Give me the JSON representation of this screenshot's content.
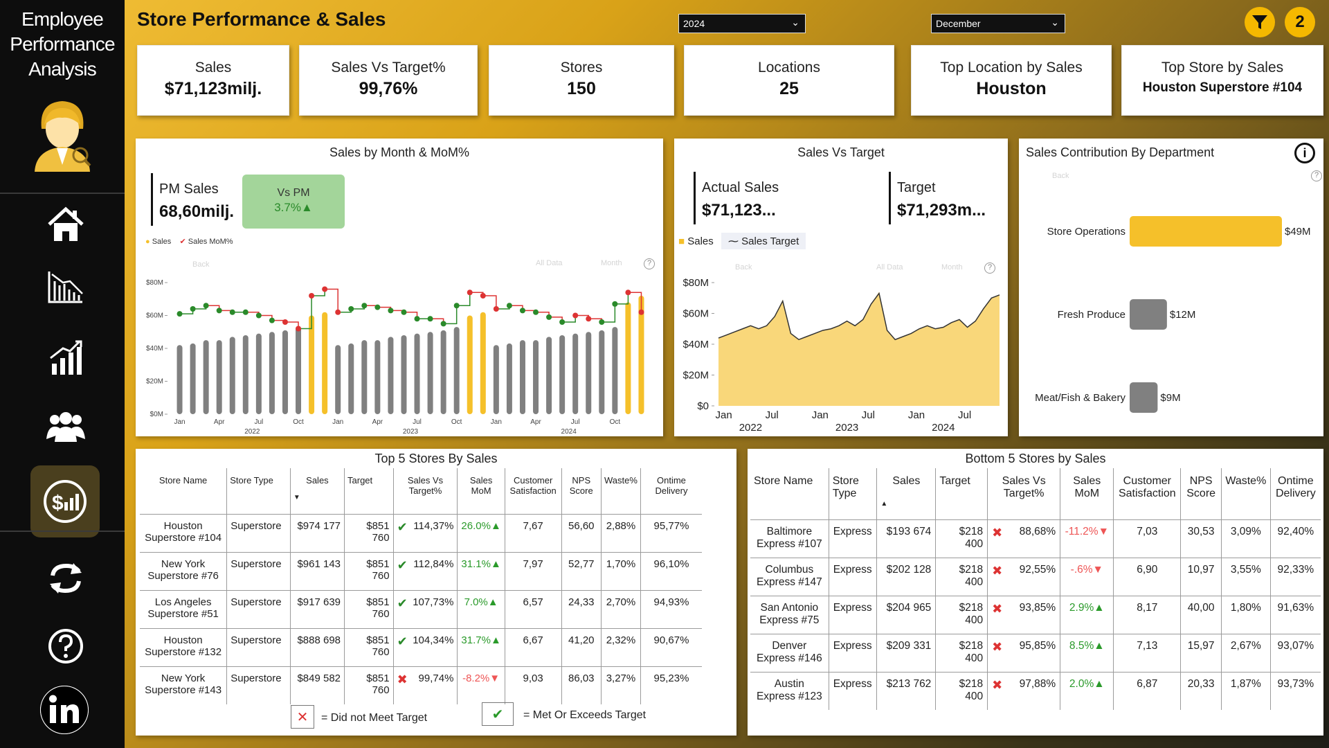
{
  "app": {
    "title_line1": "Employee",
    "title_line2": "Performance",
    "title_line3": "Analysis"
  },
  "header": {
    "title": "Store Performance & Sales",
    "year_slicer": "2024",
    "month_slicer": "December",
    "filter_count": "2"
  },
  "kpis": [
    {
      "label": "Sales",
      "value": "$71,123milj."
    },
    {
      "label": "Sales Vs Target%",
      "value": "99,76%"
    },
    {
      "label": "Stores",
      "value": "150"
    },
    {
      "label": "Locations",
      "value": "25"
    },
    {
      "label": "Top Location by Sales",
      "value": "Houston"
    },
    {
      "label": "Top Store by Sales",
      "value": "Houston Superstore #104"
    }
  ],
  "monthly": {
    "title": "Sales by Month & MoM%",
    "pm_label": "PM Sales",
    "pm_value": "68,60milj.",
    "vs_label": "Vs PM",
    "vs_value": "3.7%▲",
    "legend_sales": "Sales",
    "legend_mom": "Sales MoM%",
    "ghost_back": "Back",
    "ghost_alldata": "All Data",
    "ghost_month": "Month"
  },
  "target_card": {
    "title": "Sales Vs Target",
    "actual_label": "Actual Sales",
    "actual_value": "$71,123...",
    "target_label": "Target",
    "target_value": "$71,293m...",
    "legend_sales": "Sales",
    "legend_target": "Sales Target",
    "ghost_back": "Back",
    "ghost_alldata": "All Data",
    "ghost_month": "Month"
  },
  "department": {
    "title": "Sales Contribution By Department",
    "ghost_back": "Back",
    "bars": [
      {
        "label": "Store Operations",
        "value": 49,
        "value_label": "$49M",
        "color": "#f5c02a"
      },
      {
        "label": "Fresh Produce",
        "value": 12,
        "value_label": "$12M",
        "color": "#808080"
      },
      {
        "label": "Meat/Fish & Bakery",
        "value": 9,
        "value_label": "$9M",
        "color": "#808080"
      }
    ]
  },
  "chart_data": [
    {
      "type": "bar",
      "title": "Sales by Month & MoM%",
      "categories": [
        "Jan",
        "Feb",
        "Mar",
        "Apr",
        "May",
        "Jun",
        "Jul",
        "Aug",
        "Sep",
        "Oct",
        "Nov",
        "Dec",
        "Jan",
        "Feb",
        "Mar",
        "Apr",
        "May",
        "Jun",
        "Jul",
        "Aug",
        "Sep",
        "Oct",
        "Nov",
        "Dec",
        "Jan",
        "Feb",
        "Mar",
        "Apr",
        "May",
        "Jun",
        "Jul",
        "Aug",
        "Sep",
        "Oct",
        "Nov",
        "Dec"
      ],
      "x_tick_labels": [
        "Jan",
        "Apr",
        "Jul",
        "Oct",
        "Jan",
        "Apr",
        "Jul",
        "Oct",
        "Jan",
        "Apr",
        "Jul",
        "Oct"
      ],
      "year_labels": [
        "2022",
        "2023",
        "2024"
      ],
      "y_tick_labels": [
        "$0M",
        "$20M",
        "$40M",
        "$60M",
        "$80M"
      ],
      "ylim": [
        0,
        80
      ],
      "series": [
        {
          "name": "Sales",
          "values": [
            42,
            43,
            45,
            45,
            47,
            48,
            49,
            50,
            51,
            53,
            60,
            62,
            42,
            43,
            45,
            45,
            47,
            48,
            49,
            50,
            51,
            53,
            60,
            62,
            42,
            43,
            45,
            45,
            47,
            48,
            49,
            50,
            51,
            53,
            68,
            72
          ]
        },
        {
          "name": "Sales MoM%",
          "values": [
            61,
            64,
            66,
            63,
            62,
            62,
            60,
            57,
            56,
            52,
            72,
            76,
            62,
            64,
            66,
            65,
            63,
            62,
            58,
            58,
            55,
            66,
            74,
            72,
            64,
            66,
            63,
            62,
            59,
            56,
            60,
            58,
            56,
            67,
            74,
            62
          ]
        }
      ],
      "line_points_red": [
        8,
        9,
        10,
        11,
        12,
        22,
        23,
        24,
        30,
        31,
        34,
        35
      ],
      "bar_colors": {
        "normal": "#808080",
        "highlight": "#f5c02a"
      },
      "highlight_months": [
        10,
        11,
        22,
        23,
        34,
        35
      ]
    },
    {
      "type": "area",
      "title": "Sales Vs Target",
      "x_tick_labels": [
        "Jan",
        "Jul",
        "Jan",
        "Jul",
        "Jan",
        "Jul"
      ],
      "year_labels": [
        "2022",
        "2023",
        "2024"
      ],
      "y_tick_labels": [
        "$0",
        "$20M",
        "$40M",
        "$60M",
        "$80M"
      ],
      "ylim": [
        0,
        80
      ],
      "series": [
        {
          "name": "Sales",
          "values": [
            44,
            46,
            48,
            50,
            52,
            50,
            52,
            58,
            69,
            47,
            43,
            45,
            47,
            49,
            50,
            52,
            55,
            52,
            56,
            66,
            74,
            49,
            43,
            45,
            47,
            50,
            52,
            50,
            51,
            54,
            56,
            51,
            55,
            63,
            70,
            72
          ]
        },
        {
          "name": "Sales Target",
          "values": [
            44,
            46,
            48,
            50,
            52,
            50,
            52,
            58,
            68,
            47,
            43,
            45,
            47,
            49,
            50,
            52,
            55,
            52,
            56,
            66,
            73,
            49,
            43,
            45,
            47,
            50,
            52,
            50,
            51,
            54,
            56,
            51,
            55,
            63,
            70,
            72
          ]
        }
      ]
    }
  ],
  "top5": {
    "title": "Top 5 Stores By Sales",
    "columns": [
      "Store Name",
      "Store Type",
      "Sales",
      "Target",
      "Sales Vs Target%",
      "Sales MoM",
      "Customer Satisfaction",
      "NPS Score",
      "Waste%",
      "Ontime Delivery"
    ],
    "rows": [
      {
        "name": "Houston Superstore #104",
        "type": "Superstore",
        "sales": "$974 177",
        "target": "$851 760",
        "met": true,
        "svt": "114,37%",
        "mom": "26.0%▲",
        "mom_pos": true,
        "cs": "7,67",
        "nps": "56,60",
        "waste": "2,88%",
        "ontime": "95,77%"
      },
      {
        "name": "New York Superstore #76",
        "type": "Superstore",
        "sales": "$961 143",
        "target": "$851 760",
        "met": true,
        "svt": "112,84%",
        "mom": "31.1%▲",
        "mom_pos": true,
        "cs": "7,97",
        "nps": "52,77",
        "waste": "1,70%",
        "ontime": "96,10%"
      },
      {
        "name": "Los Angeles Superstore #51",
        "type": "Superstore",
        "sales": "$917 639",
        "target": "$851 760",
        "met": true,
        "svt": "107,73%",
        "mom": "7.0%▲",
        "mom_pos": true,
        "cs": "6,57",
        "nps": "24,33",
        "waste": "2,70%",
        "ontime": "94,93%"
      },
      {
        "name": "Houston Superstore #132",
        "type": "Superstore",
        "sales": "$888 698",
        "target": "$851 760",
        "met": true,
        "svt": "104,34%",
        "mom": "31.7%▲",
        "mom_pos": true,
        "cs": "6,67",
        "nps": "41,20",
        "waste": "2,32%",
        "ontime": "90,67%"
      },
      {
        "name": "New York Superstore #143",
        "type": "Superstore",
        "sales": "$849 582",
        "target": "$851 760",
        "met": false,
        "svt": "99,74%",
        "mom": "-8.2%▼",
        "mom_pos": false,
        "cs": "9,03",
        "nps": "86,03",
        "waste": "3,27%",
        "ontime": "95,23%"
      }
    ],
    "legend_fail": "= Did not Meet Target",
    "legend_ok": "= Met Or Exceeds Target"
  },
  "bottom5": {
    "title": "Bottom 5 Stores by Sales",
    "columns": [
      "Store Name",
      "Store Type",
      "Sales",
      "Target",
      "Sales Vs Target%",
      "Sales MoM",
      "Customer Satisfaction",
      "NPS Score",
      "Waste%",
      "Ontime Delivery"
    ],
    "rows": [
      {
        "name": "Baltimore Express #107",
        "type": "Express",
        "sales": "$193 674",
        "target": "$218 400",
        "met": false,
        "svt": "88,68%",
        "mom": "-11.2%▼",
        "mom_pos": false,
        "cs": "7,03",
        "nps": "30,53",
        "waste": "3,09%",
        "ontime": "92,40%"
      },
      {
        "name": "Columbus Express #147",
        "type": "Express",
        "sales": "$202 128",
        "target": "$218 400",
        "met": false,
        "svt": "92,55%",
        "mom": "-.6%▼",
        "mom_pos": false,
        "cs": "6,90",
        "nps": "10,97",
        "waste": "3,55%",
        "ontime": "92,33%"
      },
      {
        "name": "San Antonio Express #75",
        "type": "Express",
        "sales": "$204 965",
        "target": "$218 400",
        "met": false,
        "svt": "93,85%",
        "mom": "2.9%▲",
        "mom_pos": true,
        "cs": "8,17",
        "nps": "40,00",
        "waste": "1,80%",
        "ontime": "91,63%"
      },
      {
        "name": "Denver Express #146",
        "type": "Express",
        "sales": "$209 331",
        "target": "$218 400",
        "met": false,
        "svt": "95,85%",
        "mom": "8.5%▲",
        "mom_pos": true,
        "cs": "7,13",
        "nps": "15,97",
        "waste": "2,67%",
        "ontime": "93,07%"
      },
      {
        "name": "Austin Express #123",
        "type": "Express",
        "sales": "$213 762",
        "target": "$218 400",
        "met": false,
        "svt": "97,88%",
        "mom": "2.0%▲",
        "mom_pos": true,
        "cs": "6,87",
        "nps": "20,33",
        "waste": "1,87%",
        "ontime": "93,73%"
      }
    ]
  },
  "colors": {
    "accent": "#f5c02a",
    "sidebar": "#0d0d0d",
    "bar_gray": "#808080",
    "up": "#2a9a2a",
    "down": "#e23a3a"
  },
  "icons": [
    "employee-avatar-icon",
    "home-icon",
    "declining-chart-icon",
    "growth-chart-icon",
    "team-icon",
    "sales-report-icon",
    "refresh-icon",
    "help-icon",
    "linkedin-icon",
    "filter-icon"
  ]
}
